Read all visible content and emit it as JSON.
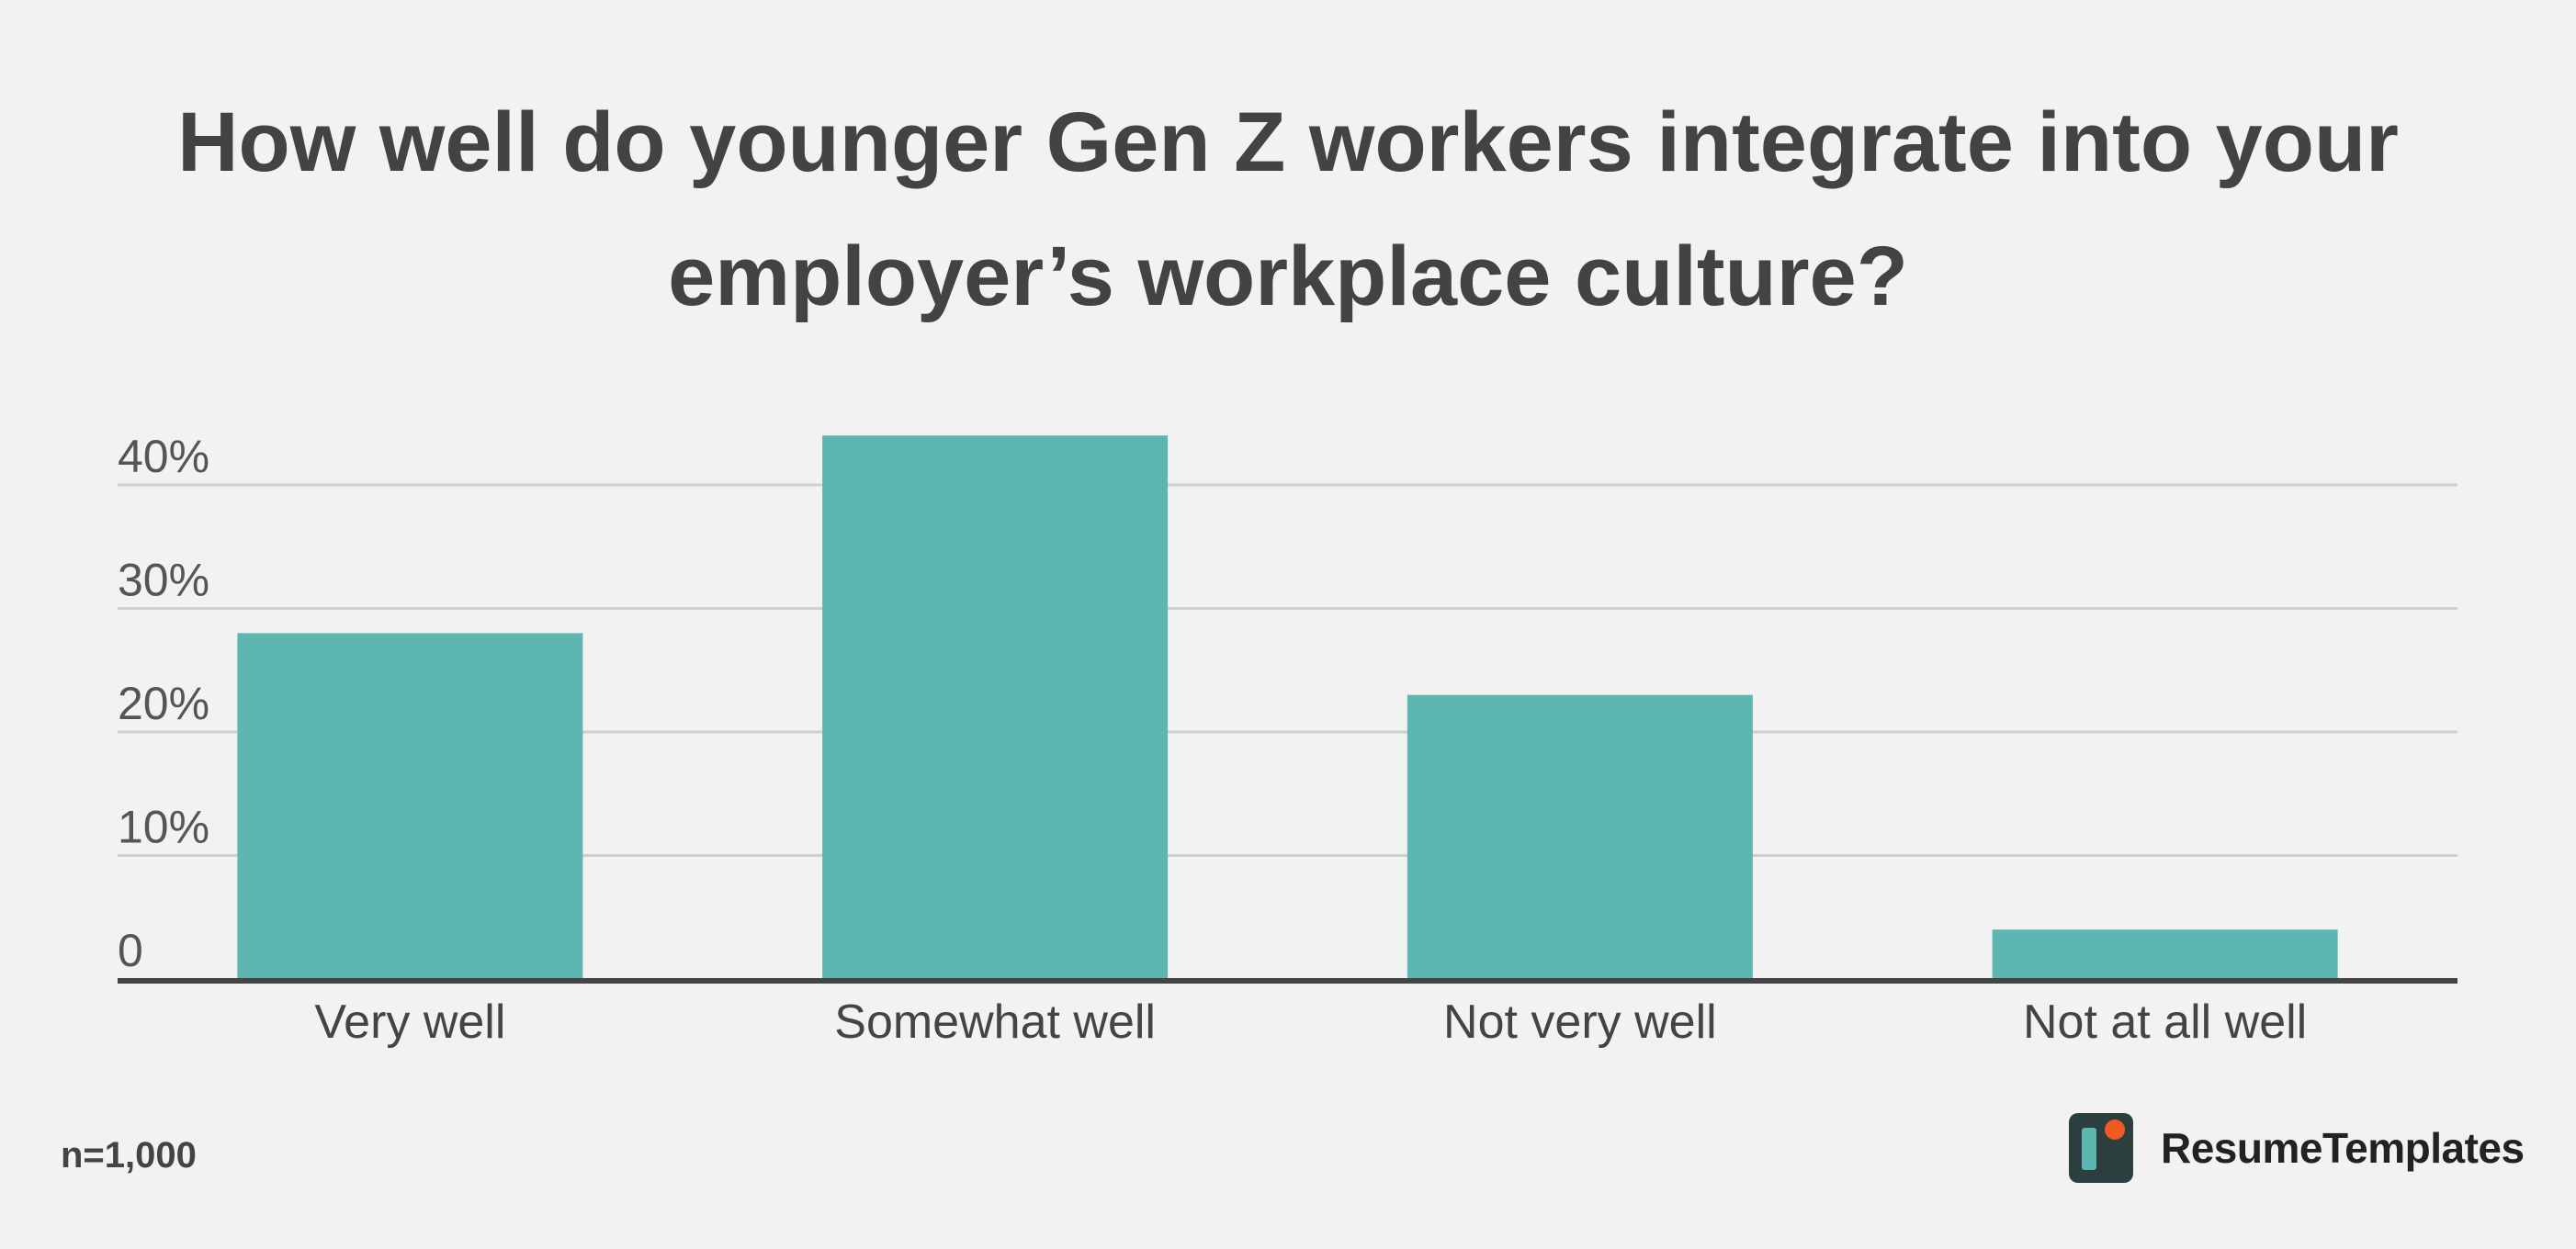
{
  "chart_data": {
    "type": "bar",
    "title": "How well do younger Gen Z workers integrate into your employer’s workplace culture?",
    "categories": [
      "Very well",
      "Somewhat well",
      "Not very well",
      "Not at all well"
    ],
    "values": [
      28,
      44,
      23,
      4
    ],
    "unit": "%",
    "ylim": [
      0,
      40
    ],
    "yticks": [
      0,
      10,
      20,
      30,
      40
    ],
    "ytick_labels": [
      "0",
      "10%",
      "20%",
      "30%",
      "40%"
    ],
    "grid": true,
    "legend": "none",
    "bar_color": "#5eb6b0"
  },
  "footnote": "n=1,000",
  "brand": {
    "name": "ResumeTemplates",
    "logo_icon": "resumetemplates-logo-icon"
  }
}
